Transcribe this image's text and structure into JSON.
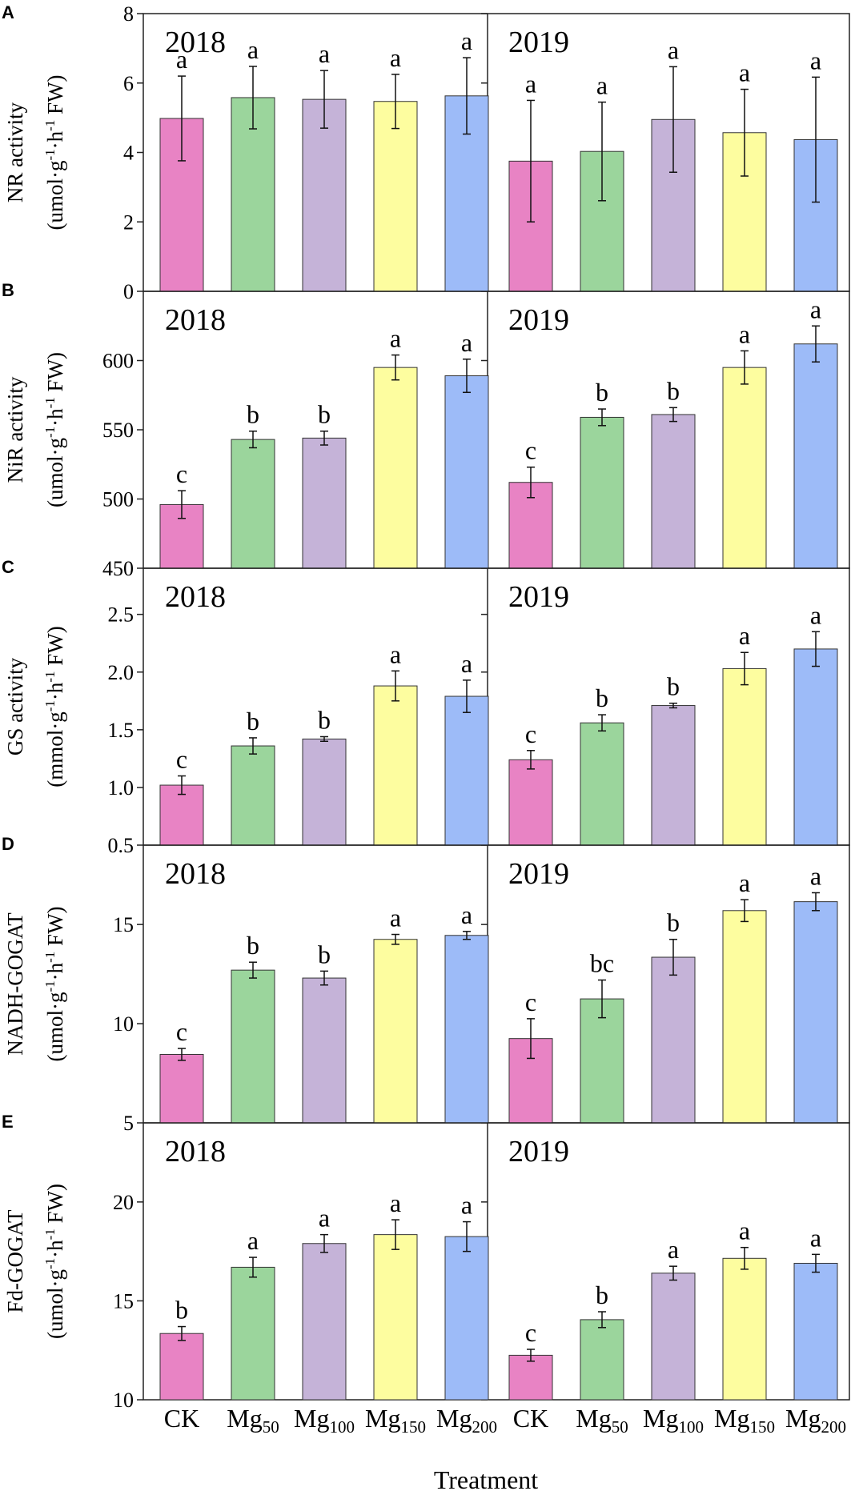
{
  "chart_data": {
    "type": "bar",
    "x_title": "Treatment",
    "categories": [
      {
        "base": "CK",
        "sub": ""
      },
      {
        "base": "Mg",
        "sub": "50"
      },
      {
        "base": "Mg",
        "sub": "100"
      },
      {
        "base": "Mg",
        "sub": "150"
      },
      {
        "base": "Mg",
        "sub": "200"
      }
    ],
    "colors": [
      "#e883c4",
      "#9bd59c",
      "#c5b3d8",
      "#fdfd9f",
      "#9dbbf8"
    ],
    "years": [
      "2018",
      "2019"
    ],
    "panels": [
      {
        "label": "A",
        "ylabel": [
          "NR activity",
          "(umol·g-1·h-1 FW)"
        ],
        "ylim": [
          0,
          8
        ],
        "ticks": [
          0,
          2,
          4,
          6,
          8
        ],
        "series": [
          {
            "year": "2018",
            "values": [
              4.98,
              5.58,
              5.53,
              5.47,
              5.63
            ],
            "errors": [
              1.22,
              0.9,
              0.83,
              0.78,
              1.1
            ],
            "letters": [
              "a",
              "a",
              "a",
              "a",
              "a"
            ]
          },
          {
            "year": "2019",
            "values": [
              3.75,
              4.03,
              4.95,
              4.57,
              4.37
            ],
            "errors": [
              1.75,
              1.42,
              1.52,
              1.25,
              1.8
            ],
            "letters": [
              "a",
              "a",
              "a",
              "a",
              "a"
            ]
          }
        ]
      },
      {
        "label": "B",
        "ylabel": [
          "NiR activity",
          "(umol·g-1·h-1 FW)"
        ],
        "ylim": [
          450,
          650
        ],
        "ticks": [
          450,
          500,
          550,
          600
        ],
        "series": [
          {
            "year": "2018",
            "values": [
              496,
              543,
              544,
              595,
              589
            ],
            "errors": [
              10,
              6,
              5,
              9,
              12
            ],
            "letters": [
              "c",
              "b",
              "b",
              "a",
              "a"
            ]
          },
          {
            "year": "2019",
            "values": [
              512,
              559,
              561,
              595,
              612
            ],
            "errors": [
              11,
              6,
              5,
              12,
              13
            ],
            "letters": [
              "c",
              "b",
              "b",
              "a",
              "a"
            ]
          }
        ]
      },
      {
        "label": "C",
        "ylabel": [
          "GS activity",
          "(mmol·g-1·h-1 FW)"
        ],
        "ylim": [
          0.5,
          2.9
        ],
        "ticks": [
          0.5,
          1.0,
          1.5,
          2.0,
          2.5
        ],
        "series": [
          {
            "year": "2018",
            "values": [
              1.02,
              1.36,
              1.42,
              1.88,
              1.79
            ],
            "errors": [
              0.08,
              0.07,
              0.02,
              0.13,
              0.14
            ],
            "letters": [
              "c",
              "b",
              "b",
              "a",
              "a"
            ]
          },
          {
            "year": "2019",
            "values": [
              1.24,
              1.56,
              1.71,
              2.03,
              2.2
            ],
            "errors": [
              0.08,
              0.07,
              0.02,
              0.14,
              0.15
            ],
            "letters": [
              "c",
              "b",
              "b",
              "a",
              "a"
            ]
          }
        ]
      },
      {
        "label": "D",
        "ylabel": [
          "NADH-GOGAT",
          "(umol·g-1·h-1 FW)"
        ],
        "ylim": [
          5,
          19
        ],
        "ticks": [
          5,
          10,
          15
        ],
        "series": [
          {
            "year": "2018",
            "values": [
              8.45,
              12.7,
              12.3,
              14.25,
              14.45
            ],
            "errors": [
              0.3,
              0.4,
              0.35,
              0.25,
              0.2
            ],
            "letters": [
              "c",
              "b",
              "b",
              "a",
              "a"
            ]
          },
          {
            "year": "2019",
            "values": [
              9.25,
              11.25,
              13.35,
              15.7,
              16.15
            ],
            "errors": [
              1.0,
              0.95,
              0.9,
              0.55,
              0.45
            ],
            "letters": [
              "c",
              "bc",
              "b",
              "a",
              "a"
            ]
          }
        ]
      },
      {
        "label": "E",
        "ylabel": [
          "Fd-GOGAT",
          "(umol·g-1·h-1 FW)"
        ],
        "ylim": [
          10,
          24
        ],
        "ticks": [
          10,
          15,
          20
        ],
        "series": [
          {
            "year": "2018",
            "values": [
              13.35,
              16.7,
              17.9,
              18.35,
              18.25
            ],
            "errors": [
              0.35,
              0.5,
              0.45,
              0.75,
              0.75
            ],
            "letters": [
              "b",
              "a",
              "a",
              "a",
              "a"
            ]
          },
          {
            "year": "2019",
            "values": [
              12.25,
              14.05,
              16.4,
              17.15,
              16.9
            ],
            "errors": [
              0.3,
              0.4,
              0.35,
              0.55,
              0.45
            ],
            "letters": [
              "c",
              "b",
              "a",
              "a",
              "a"
            ]
          }
        ]
      }
    ]
  }
}
